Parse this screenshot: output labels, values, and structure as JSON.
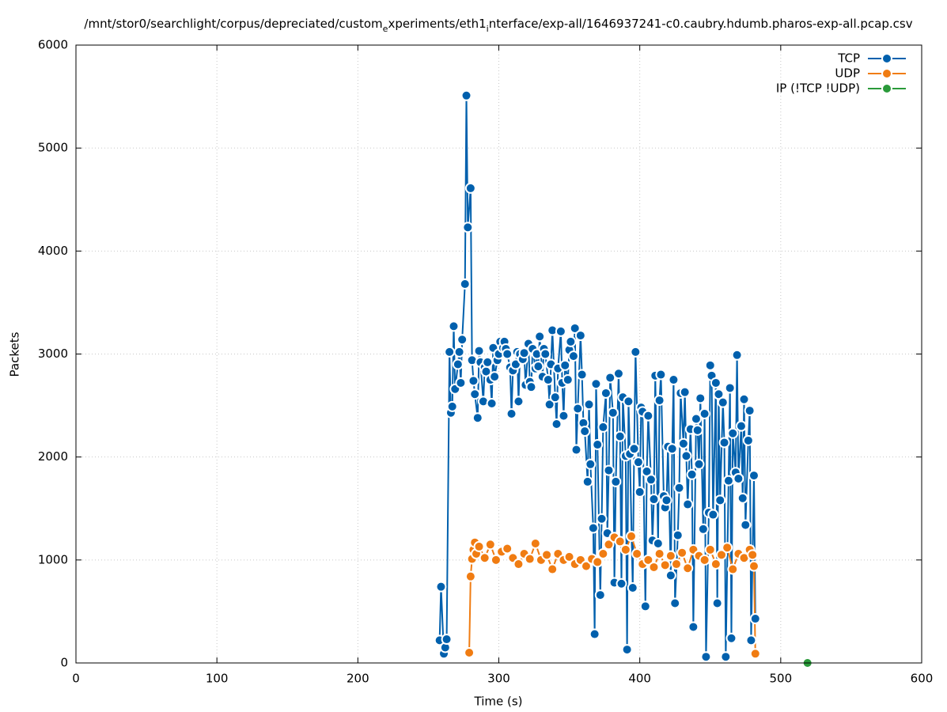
{
  "chart_data": {
    "type": "linespoints",
    "title": [
      "/mnt/stor0/searchlight/corpus/depreciated/custom",
      "e",
      "xperiments/eth1",
      "i",
      "nterface/exp-all/1646937241-c0.caubry.hdumb.pharos-exp-all.pcap.csv"
    ],
    "x_label": "Time (s)",
    "y_label": "Packets",
    "xlim": [
      0,
      600
    ],
    "ylim": [
      0,
      6000
    ],
    "xticks": [
      0,
      100,
      200,
      300,
      400,
      500,
      600
    ],
    "yticks": [
      0,
      1000,
      2000,
      3000,
      4000,
      5000,
      6000
    ],
    "grid": true,
    "legend": "top-right",
    "series": [
      {
        "name": "TCP",
        "color": "#0060ad",
        "x": [
          258,
          259,
          261,
          262,
          263,
          265,
          266,
          267,
          268,
          269,
          271,
          272,
          273,
          274,
          276,
          277,
          278,
          280,
          281,
          282,
          283,
          285,
          286,
          287,
          289,
          290,
          291,
          292,
          294,
          295,
          296,
          297,
          299,
          300,
          301,
          303,
          304,
          305,
          306,
          308,
          309,
          310,
          312,
          313,
          314,
          315,
          317,
          318,
          319,
          321,
          322,
          323,
          324,
          326,
          327,
          328,
          329,
          331,
          332,
          333,
          335,
          336,
          337,
          338,
          340,
          341,
          342,
          344,
          345,
          346,
          347,
          349,
          350,
          351,
          353,
          354,
          355,
          356,
          358,
          359,
          360,
          361,
          363,
          364,
          365,
          367,
          368,
          369,
          370,
          372,
          373,
          374,
          376,
          377,
          378,
          379,
          381,
          382,
          383,
          385,
          386,
          387,
          388,
          390,
          391,
          392,
          393,
          395,
          396,
          397,
          399,
          400,
          401,
          402,
          404,
          405,
          406,
          408,
          409,
          410,
          411,
          413,
          414,
          415,
          417,
          418,
          419,
          420,
          422,
          423,
          424,
          425,
          427,
          428,
          429,
          431,
          432,
          433,
          434,
          436,
          437,
          438,
          440,
          441,
          442,
          443,
          445,
          446,
          447,
          449,
          450,
          451,
          452,
          454,
          455,
          456,
          457,
          459,
          460,
          461,
          463,
          464,
          465,
          466,
          468,
          469,
          470,
          472,
          473,
          474,
          475,
          477,
          478,
          479,
          481,
          482
        ],
        "values": [
          220,
          740,
          90,
          150,
          230,
          3020,
          2430,
          2490,
          3270,
          2660,
          2900,
          3020,
          2720,
          3140,
          3680,
          5510,
          4230,
          4610,
          2940,
          2740,
          2610,
          2380,
          3030,
          2920,
          2540,
          2870,
          2830,
          2920,
          2750,
          2520,
          3060,
          2780,
          2940,
          3000,
          3120,
          3060,
          3120,
          3050,
          3000,
          2870,
          2420,
          2840,
          2900,
          3020,
          2540,
          3000,
          2950,
          3010,
          2700,
          3100,
          2730,
          2680,
          3050,
          2860,
          3000,
          2880,
          3170,
          2780,
          3050,
          3000,
          2750,
          2510,
          2900,
          3230,
          2580,
          2320,
          2860,
          3220,
          2720,
          2400,
          2890,
          2750,
          3040,
          3120,
          2980,
          3250,
          2070,
          2470,
          3180,
          2800,
          2330,
          2250,
          1760,
          2510,
          1930,
          1310,
          280,
          2710,
          2120,
          660,
          1400,
          2290,
          2620,
          1260,
          1870,
          2770,
          2430,
          780,
          1760,
          2810,
          2200,
          770,
          2580,
          2010,
          130,
          2540,
          2030,
          730,
          2080,
          3020,
          1950,
          1660,
          2480,
          2440,
          550,
          1860,
          2400,
          1780,
          1190,
          1590,
          2790,
          1160,
          2550,
          2800,
          1620,
          1510,
          1580,
          2100,
          850,
          2080,
          2750,
          580,
          1240,
          1700,
          2620,
          2130,
          2630,
          2010,
          1540,
          2270,
          1830,
          350,
          2370,
          2260,
          1930,
          2570,
          1300,
          2420,
          60,
          1460,
          2890,
          2790,
          1440,
          2720,
          580,
          2610,
          1580,
          2530,
          2140,
          60,
          1770,
          2670,
          240,
          2230,
          1850,
          2990,
          1790,
          2300,
          1600,
          2560,
          1340,
          2160,
          2450,
          220,
          1820,
          430
        ]
      },
      {
        "name": "UDP",
        "color": "#f07c12",
        "x": [
          279,
          280,
          281,
          282,
          283,
          284,
          286,
          290,
          294,
          298,
          302,
          306,
          310,
          314,
          318,
          322,
          326,
          330,
          334,
          338,
          342,
          346,
          350,
          354,
          358,
          362,
          366,
          370,
          374,
          378,
          382,
          386,
          390,
          394,
          398,
          402,
          406,
          410,
          414,
          418,
          422,
          426,
          430,
          434,
          438,
          442,
          446,
          450,
          454,
          458,
          462,
          466,
          470,
          474,
          478,
          480,
          481,
          482
        ],
        "values": [
          100,
          840,
          1010,
          1100,
          1170,
          1060,
          1130,
          1020,
          1150,
          1000,
          1080,
          1110,
          1020,
          960,
          1060,
          1010,
          1160,
          1000,
          1050,
          910,
          1060,
          1000,
          1030,
          960,
          1000,
          940,
          1010,
          980,
          1060,
          1150,
          1220,
          1180,
          1100,
          1230,
          1060,
          960,
          1000,
          930,
          1060,
          950,
          1040,
          960,
          1070,
          920,
          1100,
          1040,
          1000,
          1100,
          960,
          1050,
          1120,
          910,
          1060,
          1020,
          1100,
          1050,
          940,
          90
        ]
      },
      {
        "name": "IP (!TCP  !UDP)",
        "color": "#2a9a3a",
        "x": [
          519
        ],
        "values": [
          0
        ]
      }
    ]
  }
}
